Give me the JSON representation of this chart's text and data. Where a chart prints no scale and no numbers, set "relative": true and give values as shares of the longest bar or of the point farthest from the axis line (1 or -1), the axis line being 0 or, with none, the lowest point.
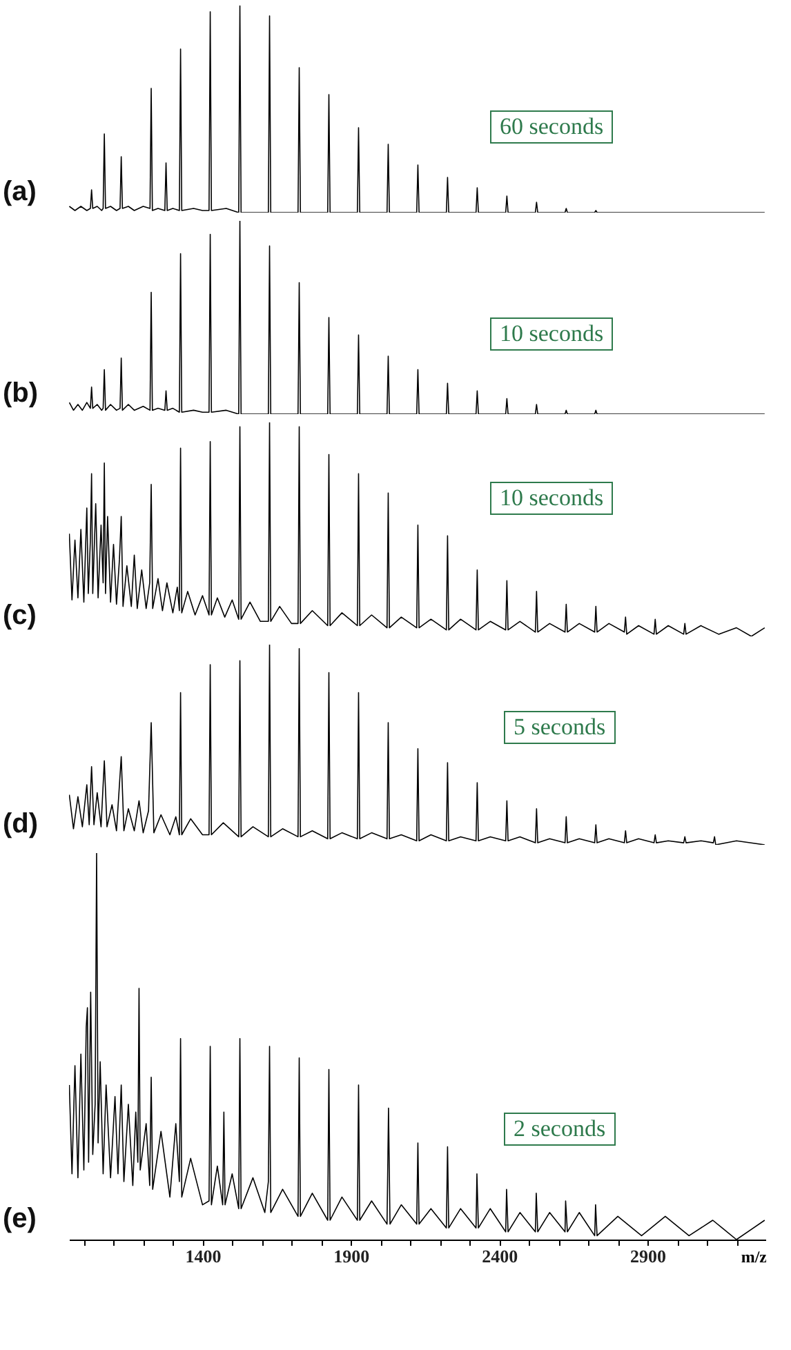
{
  "chart_data": [
    {
      "type": "line",
      "title": "(a)",
      "annotations": [
        "60 seconds"
      ],
      "relative": true,
      "xlim": [
        950,
        3300
      ],
      "tick_labels": false,
      "series": [
        {
          "color": "#000000",
          "x": [
            951,
            970,
            990,
            1010,
            1022,
            1026,
            1030,
            1045,
            1060,
            1065,
            1069,
            1073,
            1090,
            1110,
            1122,
            1126,
            1130,
            1150,
            1170,
            1200,
            1223,
            1227,
            1231,
            1250,
            1273,
            1277,
            1281,
            1300,
            1322,
            1326,
            1330,
            1370,
            1400,
            1422,
            1426,
            1430,
            1480,
            1522,
            1526,
            1530,
            1622,
            1626,
            1630,
            1722,
            1726,
            1730,
            1822,
            1826,
            1830,
            1922,
            1926,
            1930,
            2022,
            2026,
            2030,
            2122,
            2126,
            2130,
            2222,
            2226,
            2230,
            2322,
            2326,
            2330,
            2422,
            2426,
            2430,
            2522,
            2526,
            2530,
            2622,
            2626,
            2630,
            2722,
            2726,
            2730,
            3295
          ],
          "values": [
            0.03,
            0.01,
            0.03,
            0.01,
            0.02,
            0.11,
            0.02,
            0.03,
            0.01,
            0.02,
            0.38,
            0.02,
            0.03,
            0.01,
            0.02,
            0.27,
            0.02,
            0.03,
            0.01,
            0.03,
            0.02,
            0.6,
            0.01,
            0.02,
            0.01,
            0.24,
            0.01,
            0.02,
            0.01,
            0.79,
            0.01,
            0.02,
            0.01,
            0.01,
            0.97,
            0.01,
            0.02,
            0,
            1,
            0,
            0,
            0.95,
            0,
            0,
            0.7,
            0,
            0,
            0.57,
            0,
            0,
            0.41,
            0,
            0,
            0.33,
            0,
            0,
            0.23,
            0,
            0,
            0.17,
            0,
            0,
            0.12,
            0,
            0,
            0.08,
            0,
            0,
            0.05,
            0,
            0,
            0.02,
            0,
            0,
            0.01,
            0,
            0
          ]
        }
      ]
    },
    {
      "type": "line",
      "title": "(b)",
      "annotations": [
        "10 seconds"
      ],
      "relative": true,
      "xlim": [
        950,
        3300
      ],
      "tick_labels": false,
      "series": [
        {
          "color": "#000000",
          "x": [
            951,
            965,
            980,
            995,
            1010,
            1022,
            1026,
            1030,
            1045,
            1060,
            1065,
            1069,
            1073,
            1090,
            1110,
            1122,
            1126,
            1130,
            1150,
            1170,
            1200,
            1223,
            1227,
            1231,
            1250,
            1273,
            1277,
            1281,
            1300,
            1322,
            1326,
            1330,
            1370,
            1400,
            1422,
            1426,
            1430,
            1480,
            1522,
            1526,
            1530,
            1622,
            1626,
            1630,
            1722,
            1726,
            1730,
            1822,
            1826,
            1830,
            1922,
            1926,
            1930,
            2022,
            2026,
            2030,
            2122,
            2126,
            2130,
            2222,
            2226,
            2230,
            2322,
            2326,
            2330,
            2422,
            2426,
            2430,
            2522,
            2526,
            2530,
            2622,
            2626,
            2630,
            2722,
            2726,
            2730,
            3295
          ],
          "values": [
            0.06,
            0.02,
            0.05,
            0.02,
            0.06,
            0.03,
            0.14,
            0.03,
            0.05,
            0.02,
            0.03,
            0.23,
            0.02,
            0.05,
            0.02,
            0.03,
            0.29,
            0.02,
            0.05,
            0.02,
            0.04,
            0.02,
            0.63,
            0.02,
            0.03,
            0.02,
            0.12,
            0.02,
            0.03,
            0.01,
            0.83,
            0.01,
            0.02,
            0.01,
            0.01,
            0.93,
            0.01,
            0.02,
            0,
            1,
            0,
            0,
            0.87,
            0,
            0,
            0.68,
            0,
            0,
            0.5,
            0,
            0,
            0.41,
            0,
            0,
            0.3,
            0,
            0,
            0.23,
            0,
            0,
            0.16,
            0,
            0,
            0.12,
            0,
            0,
            0.08,
            0,
            0,
            0.05,
            0,
            0,
            0.02,
            0,
            0,
            0.02,
            0,
            0
          ]
        }
      ]
    },
    {
      "type": "line",
      "title": "(c)",
      "annotations": [
        "10 seconds"
      ],
      "relative": true,
      "xlim": [
        950,
        3300
      ],
      "tick_labels": false,
      "series": [
        {
          "color": "#000000",
          "x": [
            951,
            960,
            970,
            980,
            990,
            1000,
            1010,
            1015,
            1022,
            1026,
            1030,
            1040,
            1048,
            1058,
            1065,
            1069,
            1073,
            1080,
            1090,
            1100,
            1110,
            1120,
            1126,
            1132,
            1145,
            1160,
            1170,
            1180,
            1195,
            1210,
            1222,
            1227,
            1232,
            1250,
            1265,
            1280,
            1300,
            1315,
            1322,
            1326,
            1330,
            1350,
            1375,
            1400,
            1422,
            1426,
            1430,
            1450,
            1475,
            1500,
            1522,
            1526,
            1530,
            1560,
            1595,
            1622,
            1626,
            1630,
            1660,
            1700,
            1722,
            1726,
            1730,
            1770,
            1822,
            1826,
            1830,
            1870,
            1922,
            1926,
            1930,
            1970,
            2022,
            2026,
            2030,
            2070,
            2122,
            2126,
            2130,
            2170,
            2222,
            2226,
            2230,
            2270,
            2322,
            2326,
            2330,
            2370,
            2422,
            2426,
            2430,
            2470,
            2522,
            2526,
            2530,
            2570,
            2622,
            2626,
            2630,
            2670,
            2722,
            2726,
            2730,
            2770,
            2822,
            2826,
            2830,
            2870,
            2922,
            2926,
            2930,
            2970,
            3022,
            3026,
            3030,
            3080,
            3140,
            3200,
            3250,
            3295
          ],
          "values": [
            0.48,
            0.17,
            0.45,
            0.18,
            0.5,
            0.16,
            0.6,
            0.2,
            0.45,
            0.76,
            0.2,
            0.62,
            0.18,
            0.52,
            0.25,
            0.81,
            0.2,
            0.56,
            0.16,
            0.43,
            0.15,
            0.36,
            0.56,
            0.14,
            0.33,
            0.14,
            0.38,
            0.13,
            0.31,
            0.13,
            0.25,
            0.71,
            0.13,
            0.27,
            0.12,
            0.25,
            0.11,
            0.23,
            0.12,
            0.88,
            0.11,
            0.21,
            0.1,
            0.19,
            0.1,
            0.91,
            0.1,
            0.18,
            0.09,
            0.17,
            0.08,
            0.98,
            0.08,
            0.16,
            0.07,
            0.07,
            1,
            0.07,
            0.14,
            0.06,
            0.06,
            0.98,
            0.06,
            0.12,
            0.05,
            0.85,
            0.05,
            0.11,
            0.05,
            0.76,
            0.05,
            0.1,
            0.04,
            0.67,
            0.04,
            0.09,
            0.04,
            0.52,
            0.04,
            0.08,
            0.03,
            0.47,
            0.03,
            0.08,
            0.03,
            0.31,
            0.03,
            0.07,
            0.03,
            0.26,
            0.03,
            0.07,
            0.02,
            0.21,
            0.02,
            0.06,
            0.02,
            0.15,
            0.02,
            0.06,
            0.02,
            0.14,
            0.02,
            0.06,
            0.02,
            0.09,
            0.01,
            0.05,
            0.01,
            0.08,
            0.01,
            0.05,
            0.01,
            0.06,
            0.01,
            0.05,
            0.01,
            0.04,
            0,
            0.04
          ]
        }
      ]
    },
    {
      "type": "line",
      "title": "(d)",
      "annotations": [
        "5 seconds"
      ],
      "relative": true,
      "xlim": [
        950,
        3300
      ],
      "tick_labels": false,
      "series": [
        {
          "color": "#000000",
          "x": [
            951,
            965,
            980,
            995,
            1010,
            1018,
            1026,
            1034,
            1045,
            1058,
            1069,
            1078,
            1095,
            1110,
            1126,
            1135,
            1150,
            1170,
            1186,
            1200,
            1218,
            1227,
            1236,
            1260,
            1290,
            1310,
            1322,
            1326,
            1330,
            1360,
            1400,
            1422,
            1426,
            1430,
            1470,
            1522,
            1526,
            1530,
            1570,
            1622,
            1626,
            1630,
            1670,
            1722,
            1726,
            1730,
            1770,
            1822,
            1826,
            1830,
            1870,
            1922,
            1926,
            1930,
            1970,
            2022,
            2026,
            2030,
            2070,
            2122,
            2126,
            2130,
            2170,
            2222,
            2226,
            2230,
            2270,
            2322,
            2326,
            2330,
            2370,
            2422,
            2426,
            2430,
            2470,
            2522,
            2526,
            2530,
            2570,
            2622,
            2626,
            2630,
            2670,
            2722,
            2726,
            2730,
            2770,
            2822,
            2826,
            2830,
            2870,
            2922,
            2926,
            2930,
            2970,
            3022,
            3026,
            3030,
            3080,
            3122,
            3126,
            3130,
            3200,
            3295
          ],
          "values": [
            0.25,
            0.08,
            0.24,
            0.09,
            0.3,
            0.1,
            0.39,
            0.1,
            0.26,
            0.09,
            0.42,
            0.09,
            0.2,
            0.07,
            0.44,
            0.07,
            0.18,
            0.07,
            0.22,
            0.06,
            0.17,
            0.61,
            0.06,
            0.15,
            0.05,
            0.14,
            0.05,
            0.76,
            0.05,
            0.13,
            0.05,
            0.05,
            0.9,
            0.05,
            0.11,
            0.04,
            0.92,
            0.04,
            0.09,
            0.04,
            1,
            0.04,
            0.08,
            0.04,
            0.98,
            0.04,
            0.07,
            0.03,
            0.86,
            0.03,
            0.06,
            0.03,
            0.76,
            0.03,
            0.06,
            0.03,
            0.61,
            0.03,
            0.05,
            0.02,
            0.48,
            0.02,
            0.05,
            0.02,
            0.41,
            0.02,
            0.04,
            0.02,
            0.31,
            0.02,
            0.04,
            0.02,
            0.22,
            0.02,
            0.04,
            0.01,
            0.18,
            0.01,
            0.03,
            0.01,
            0.14,
            0.01,
            0.03,
            0.01,
            0.1,
            0.01,
            0.03,
            0.01,
            0.07,
            0.01,
            0.03,
            0.01,
            0.05,
            0.01,
            0.02,
            0.01,
            0.04,
            0.01,
            0.02,
            0.01,
            0.04,
            0,
            0.02,
            0
          ]
        }
      ]
    },
    {
      "type": "line",
      "title": "(e)",
      "annotations": [
        "2 seconds"
      ],
      "relative": true,
      "xlim": [
        950,
        3300
      ],
      "tick_labels": "x",
      "xlabel": "m/z",
      "xticks": [
        {
          "value": 1000,
          "label": null
        },
        {
          "value": 1100,
          "label": null
        },
        {
          "value": 1200,
          "label": null
        },
        {
          "value": 1300,
          "label": null
        },
        1400,
        {
          "value": 1500,
          "label": null
        },
        {
          "value": 1600,
          "label": null
        },
        {
          "value": 1700,
          "label": null
        },
        {
          "value": 1800,
          "label": null
        },
        1900,
        {
          "value": 2000,
          "label": null
        },
        {
          "value": 2100,
          "label": null
        },
        {
          "value": 2200,
          "label": null
        },
        {
          "value": 2300,
          "label": null
        },
        2400,
        {
          "value": 2500,
          "label": null
        },
        {
          "value": 2600,
          "label": null
        },
        {
          "value": 2700,
          "label": null
        },
        {
          "value": 2800,
          "label": null
        },
        2900,
        {
          "value": 3000,
          "label": null
        },
        {
          "value": 3100,
          "label": null
        },
        {
          "value": 3200,
          "label": null
        }
      ],
      "series": [
        {
          "color": "#000000",
          "x": [
            951,
            960,
            970,
            980,
            990,
            1000,
            1008,
            1012,
            1016,
            1023,
            1030,
            1038,
            1043,
            1048,
            1055,
            1065,
            1075,
            1090,
            1105,
            1115,
            1126,
            1135,
            1150,
            1165,
            1175,
            1182,
            1186,
            1190,
            1210,
            1222,
            1227,
            1232,
            1260,
            1290,
            1310,
            1322,
            1326,
            1330,
            1360,
            1400,
            1422,
            1426,
            1430,
            1450,
            1468,
            1472,
            1476,
            1500,
            1522,
            1526,
            1530,
            1570,
            1610,
            1622,
            1626,
            1630,
            1670,
            1722,
            1726,
            1730,
            1770,
            1822,
            1826,
            1830,
            1870,
            1922,
            1926,
            1930,
            1970,
            2022,
            2027,
            2032,
            2070,
            2122,
            2126,
            2130,
            2170,
            2222,
            2226,
            2230,
            2270,
            2322,
            2325,
            2330,
            2370,
            2422,
            2425,
            2430,
            2470,
            2522,
            2525,
            2530,
            2570,
            2622,
            2624,
            2630,
            2670,
            2722,
            2725,
            2730,
            2800,
            2880,
            2960,
            3040,
            3120,
            3200,
            3295
          ],
          "values": [
            0.4,
            0.17,
            0.45,
            0.16,
            0.48,
            0.18,
            0.55,
            0.6,
            0.2,
            0.64,
            0.22,
            0.35,
            1,
            0.25,
            0.46,
            0.17,
            0.4,
            0.16,
            0.37,
            0.17,
            0.4,
            0.15,
            0.35,
            0.14,
            0.33,
            0.2,
            0.65,
            0.18,
            0.3,
            0.14,
            0.42,
            0.13,
            0.28,
            0.11,
            0.3,
            0.15,
            0.52,
            0.11,
            0.21,
            0.09,
            0.1,
            0.5,
            0.09,
            0.19,
            0.09,
            0.33,
            0.09,
            0.17,
            0.08,
            0.52,
            0.08,
            0.16,
            0.07,
            0.15,
            0.5,
            0.07,
            0.13,
            0.06,
            0.47,
            0.06,
            0.12,
            0.05,
            0.44,
            0.05,
            0.11,
            0.05,
            0.4,
            0.05,
            0.1,
            0.04,
            0.34,
            0.04,
            0.09,
            0.04,
            0.25,
            0.04,
            0.08,
            0.03,
            0.24,
            0.03,
            0.08,
            0.03,
            0.17,
            0.03,
            0.08,
            0.02,
            0.13,
            0.02,
            0.07,
            0.02,
            0.12,
            0.02,
            0.07,
            0.02,
            0.1,
            0.02,
            0.07,
            0.01,
            0.09,
            0.01,
            0.06,
            0.01,
            0.06,
            0.01,
            0.05,
            0,
            0.05
          ]
        }
      ]
    }
  ]
}
